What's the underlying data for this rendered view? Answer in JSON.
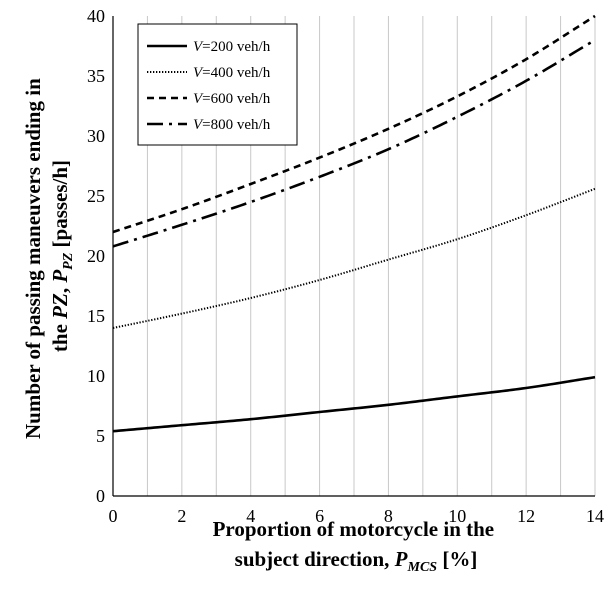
{
  "chart_data": {
    "type": "line",
    "title": "",
    "xlabel": {
      "line1": "Proportion of motorcycle in the",
      "line2_prefix": "subject direction, ",
      "var": "P",
      "sub": "MCS",
      "suffix": " [%]"
    },
    "ylabel": {
      "line1": "Number of passing maneuvers ending in",
      "line2_prefix": "the ",
      "pz": "PZ",
      "comma": ", ",
      "var": "P",
      "sub": "PZ",
      "suffix": " [passes/h]"
    },
    "xlim": [
      0,
      14
    ],
    "ylim": [
      0,
      40
    ],
    "x_ticks": [
      0,
      2,
      4,
      6,
      8,
      10,
      12,
      14
    ],
    "y_ticks": [
      0,
      5,
      10,
      15,
      20,
      25,
      30,
      35,
      40
    ],
    "grid": {
      "vertical": true,
      "horizontal": false,
      "x_step": 1
    },
    "legend_position": "top-left",
    "x": [
      0,
      2,
      4,
      6,
      8,
      10,
      12,
      14
    ],
    "series": [
      {
        "legend_var": "V",
        "legend_rest": "=200 veh/h",
        "style": "solid",
        "values": [
          5.4,
          5.9,
          6.4,
          7.0,
          7.6,
          8.3,
          9.0,
          9.9
        ]
      },
      {
        "legend_var": "V",
        "legend_rest": "=400 veh/h",
        "style": "dotted",
        "values": [
          14.0,
          15.2,
          16.5,
          18.0,
          19.7,
          21.4,
          23.4,
          25.6
        ]
      },
      {
        "legend_var": "V",
        "legend_rest": "=600 veh/h",
        "style": "dashed",
        "values": [
          22.0,
          23.9,
          26.0,
          28.2,
          30.6,
          33.3,
          36.4,
          40.0
        ]
      },
      {
        "legend_var": "V",
        "legend_rest": "=800 veh/h",
        "style": "dashdot",
        "values": [
          20.8,
          22.6,
          24.5,
          26.6,
          28.9,
          31.6,
          34.6,
          38.0
        ]
      }
    ]
  }
}
